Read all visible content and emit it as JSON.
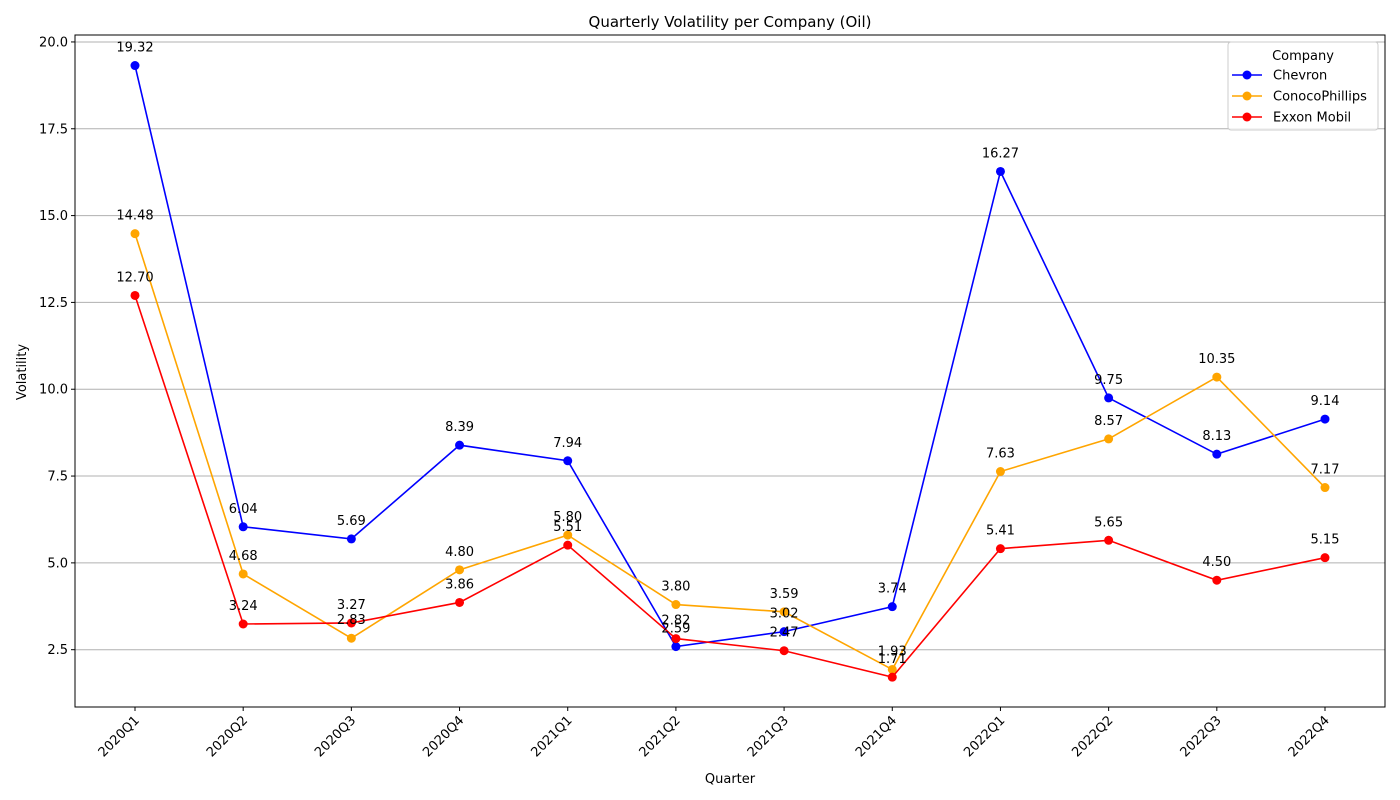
{
  "chart_data": {
    "type": "line",
    "title": "Quarterly Volatility per Company (Oil)",
    "xlabel": "Quarter",
    "ylabel": "Volatility",
    "categories": [
      "2020Q1",
      "2020Q2",
      "2020Q3",
      "2020Q4",
      "2021Q1",
      "2021Q2",
      "2021Q3",
      "2021Q4",
      "2022Q1",
      "2022Q2",
      "2022Q3",
      "2022Q4"
    ],
    "ylim": [
      0.85,
      20.2
    ],
    "yticks": [
      "2.5",
      "5.0",
      "7.5",
      "10.0",
      "12.5",
      "15.0",
      "17.5",
      "20.0"
    ],
    "grid": "horizontal",
    "legend": {
      "title": "Company",
      "placement": "top-right"
    },
    "series": [
      {
        "name": "Chevron",
        "color": "#0000ff",
        "values": [
          19.32,
          6.04,
          5.69,
          8.39,
          7.94,
          2.59,
          3.02,
          3.74,
          16.27,
          9.75,
          8.13,
          9.14
        ],
        "labels": [
          "19.32",
          "6.04",
          "5.69",
          "8.39",
          "7.94",
          "2.59",
          "3.02",
          "3.74",
          "16.27",
          "9.75",
          "8.13",
          "9.14"
        ]
      },
      {
        "name": "ConocoPhillips",
        "color": "#ffa500",
        "values": [
          14.48,
          4.68,
          2.83,
          4.8,
          5.8,
          3.8,
          3.59,
          1.93,
          7.63,
          8.57,
          10.35,
          7.17
        ],
        "labels": [
          "14.48",
          "4.68",
          "2.83",
          "4.80",
          "5.80",
          "3.80",
          "3.59",
          "1.93",
          "7.63",
          "8.57",
          "10.35",
          "7.17"
        ]
      },
      {
        "name": "Exxon Mobil",
        "color": "#ff0000",
        "values": [
          12.7,
          3.24,
          3.27,
          3.86,
          5.51,
          2.82,
          2.47,
          1.71,
          5.41,
          5.65,
          4.5,
          5.15
        ],
        "labels": [
          "12.70",
          "3.24",
          "3.27",
          "3.86",
          "5.51",
          "2.82",
          "2.47",
          "1.71",
          "5.41",
          "5.65",
          "4.50",
          "5.15"
        ]
      }
    ]
  }
}
